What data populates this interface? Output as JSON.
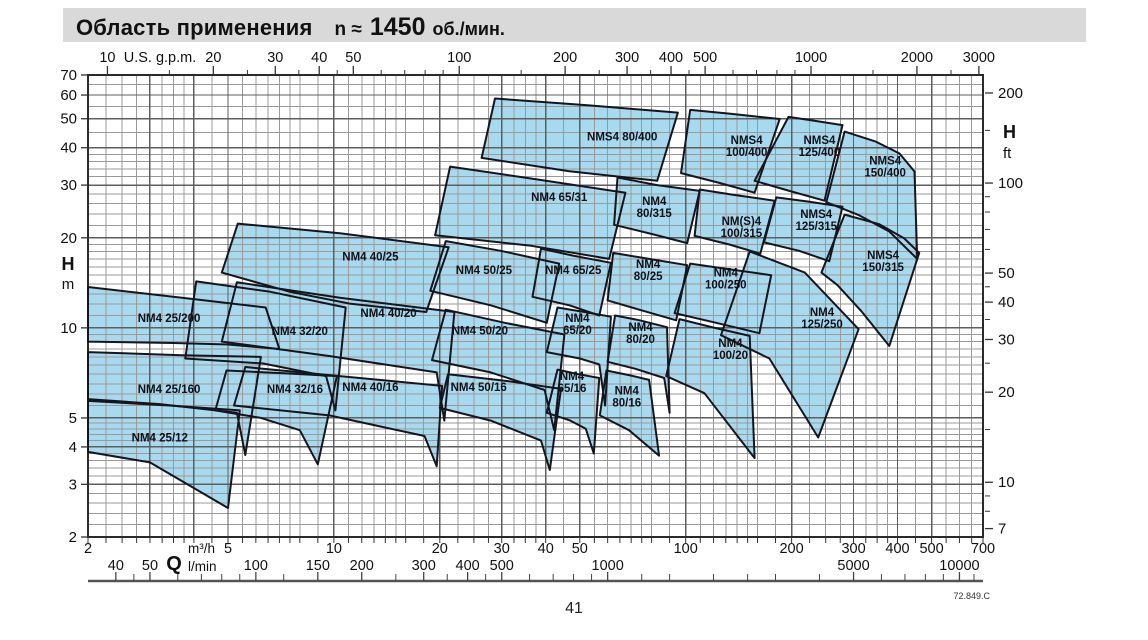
{
  "title": {
    "main": "Область применения",
    "n": "n ≈",
    "value": "1450",
    "units": "об./мин."
  },
  "page_number": "41",
  "doc_code": "72.849.C",
  "colors": {
    "region_fill": "#a8daef",
    "region_stroke": "#15151e",
    "grid_minor": "#9a9a9a",
    "grid_major": "#5e5e5e",
    "plot_border": "#2a2a2a",
    "title_bg": "#d9d9d9",
    "label_text": "#101018"
  },
  "chart_data": {
    "type": "area",
    "title": "Область применения n ≈ 1450 об./мин.",
    "x_axis": {
      "symbol": "Q",
      "unit_primary": "m³/h",
      "unit_secondary": "l/min",
      "scale": "log",
      "range_m3h": [
        2,
        700
      ],
      "m3h_ticks": [
        2,
        5,
        10,
        20,
        30,
        40,
        50,
        100,
        200,
        300,
        400,
        500,
        700
      ],
      "lmin_ticks": [
        40,
        50,
        100,
        150,
        200,
        300,
        400,
        500,
        1000,
        5000,
        10000
      ],
      "lmin_per_m3h": 16.667
    },
    "top_axis": {
      "label": "U.S. g.p.m.",
      "ticks": [
        10,
        20,
        30,
        40,
        50,
        100,
        200,
        300,
        400,
        500,
        1000,
        2000,
        3000
      ],
      "gpm_per_m3h": 4.4029
    },
    "y_axis": {
      "symbol": "H",
      "unit": "m",
      "scale": "log",
      "range_m": [
        2,
        70
      ],
      "ticks": [
        2,
        3,
        4,
        5,
        10,
        20,
        30,
        40,
        50,
        60,
        70
      ]
    },
    "right_axis": {
      "symbol": "H",
      "unit": "ft",
      "ticks": [
        7,
        10,
        20,
        30,
        40,
        50,
        100,
        200
      ],
      "ft_per_m": 3.2808
    },
    "regions": [
      {
        "name": "NM4 25/200",
        "lines": [
          "NM4 25/200"
        ],
        "at": [
          3.4,
          10.8
        ],
        "pts": [
          [
            2,
            13.7
          ],
          [
            3.7,
            12.6
          ],
          [
            6.4,
            11.7
          ],
          [
            7.0,
            8.5
          ],
          [
            5.0,
            8.8
          ],
          [
            3.5,
            8.9
          ],
          [
            2,
            9.0
          ]
        ]
      },
      {
        "name": "NM4 25/160",
        "lines": [
          "NM4 25/160"
        ],
        "at": [
          3.4,
          6.25
        ],
        "pts": [
          [
            2,
            8.3
          ],
          [
            3.7,
            8.1
          ],
          [
            6.2,
            8.0
          ],
          [
            5.6,
            3.76
          ],
          [
            5.3,
            5.2
          ],
          [
            3.2,
            5.56
          ],
          [
            2,
            5.78
          ]
        ]
      },
      {
        "name": "NM4 25/12",
        "lines": [
          "NM4 25/12"
        ],
        "at": [
          3.2,
          4.3
        ],
        "pts": [
          [
            2,
            5.7
          ],
          [
            3.4,
            5.5
          ],
          [
            5.4,
            5.3
          ],
          [
            5.0,
            2.5
          ],
          [
            3.0,
            3.55
          ],
          [
            2,
            3.85
          ]
        ]
      },
      {
        "name": "NM4 32/20",
        "lines": [
          "NM4 32/20"
        ],
        "at": [
          8.0,
          9.75
        ],
        "pts": [
          [
            4.06,
            14.3
          ],
          [
            6.6,
            13.2
          ],
          [
            10.8,
            11.7
          ],
          [
            10.1,
            5.3
          ],
          [
            9.5,
            6.9
          ],
          [
            6.3,
            7.6
          ],
          [
            3.78,
            7.9
          ]
        ]
      },
      {
        "name": "NM4 32/16",
        "lines": [
          "NM4 32/16"
        ],
        "at": [
          7.75,
          6.25
        ],
        "pts": [
          [
            4.95,
            7.2
          ],
          [
            7.2,
            7.05
          ],
          [
            10.2,
            6.9
          ],
          [
            9.0,
            3.5
          ],
          [
            8.0,
            4.55
          ],
          [
            6.2,
            5.0
          ],
          [
            4.6,
            5.3
          ]
        ]
      },
      {
        "name": "NM4 40/25",
        "lines": [
          "NM4 40/25"
        ],
        "at": [
          12.7,
          17.3
        ],
        "pts": [
          [
            5.33,
            22.3
          ],
          [
            10.4,
            20.7
          ],
          [
            21.2,
            18.6
          ],
          [
            18.3,
            11.3
          ],
          [
            11.1,
            12.05
          ],
          [
            7.5,
            13.2
          ],
          [
            4.8,
            15.3
          ]
        ]
      },
      {
        "name": "NM4 40/20",
        "lines": [
          "NM4 40/20"
        ],
        "at": [
          14.3,
          11.2
        ],
        "pts": [
          [
            5.3,
            14.2
          ],
          [
            10.4,
            12.6
          ],
          [
            22,
            11.3
          ],
          [
            20.6,
            4.9
          ],
          [
            19.6,
            7.1
          ],
          [
            9.7,
            8.05
          ],
          [
            4.8,
            9.0
          ]
        ]
      },
      {
        "name": "NM4 40/16",
        "lines": [
          "NM4 40/16"
        ],
        "at": [
          12.7,
          6.35
        ],
        "pts": [
          [
            5.6,
            7.4
          ],
          [
            10.4,
            6.9
          ],
          [
            20.3,
            6.4
          ],
          [
            19.6,
            3.45
          ],
          [
            18.1,
            4.35
          ],
          [
            9.7,
            5.1
          ],
          [
            5.2,
            5.5
          ]
        ]
      },
      {
        "name": "NM4 50/25",
        "lines": [
          "NM4 50/25"
        ],
        "at": [
          26.7,
          15.6
        ],
        "pts": [
          [
            20.8,
            19.5
          ],
          [
            29.8,
            18.1
          ],
          [
            43.7,
            16.4
          ],
          [
            40.3,
            10.4
          ],
          [
            27.9,
            11.9
          ],
          [
            18.8,
            13.3
          ]
        ]
      },
      {
        "name": "NM4 50/20",
        "lines": [
          "NM4 50/20"
        ],
        "at": [
          26.0,
          9.8
        ],
        "pts": [
          [
            20.8,
            11.5
          ],
          [
            30.6,
            10.4
          ],
          [
            45.2,
            9.5
          ],
          [
            42.3,
            4.55
          ],
          [
            39.7,
            6.2
          ],
          [
            27.9,
            7.1
          ],
          [
            19.0,
            7.8
          ]
        ]
      },
      {
        "name": "NM4 50/16",
        "lines": [
          "NM4 50/16"
        ],
        "at": [
          25.8,
          6.35
        ],
        "pts": [
          [
            21.1,
            7.0
          ],
          [
            30.6,
            6.66
          ],
          [
            44.2,
            6.25
          ],
          [
            41.1,
            3.35
          ],
          [
            38.8,
            4.2
          ],
          [
            27.9,
            4.9
          ],
          [
            20,
            5.4
          ]
        ]
      },
      {
        "name": "NM4 65/31",
        "lines": [
          "NM4 65/31"
        ],
        "at": [
          43.7,
          27.4
        ],
        "pts": [
          [
            21.4,
            34.6
          ],
          [
            38.8,
            31.2
          ],
          [
            67.4,
            28.3
          ],
          [
            60.6,
            17.0
          ],
          [
            36.4,
            18.8
          ],
          [
            19.4,
            20.4
          ]
        ]
      },
      {
        "name": "NM4 65/25",
        "lines": [
          "NM4 65/25"
        ],
        "at": [
          47.9,
          15.6
        ],
        "pts": [
          [
            38.8,
            18.4
          ],
          [
            48.2,
            17.4
          ],
          [
            61.3,
            16.5
          ],
          [
            56.8,
            11.0
          ],
          [
            46.7,
            11.9
          ],
          [
            36.7,
            12.7
          ]
        ]
      },
      {
        "name": "NM4 65/20",
        "lines": [
          "NM4",
          "65/20"
        ],
        "at": [
          49.2,
          10.3
        ],
        "pts": [
          [
            43.2,
            11.7
          ],
          [
            51.5,
            11.3
          ],
          [
            61.3,
            10.9
          ],
          [
            59,
            5.5
          ],
          [
            56.8,
            7.55
          ],
          [
            50,
            7.9
          ],
          [
            40.3,
            8.3
          ]
        ]
      },
      {
        "name": "NM4 65/16",
        "lines": [
          "NM4",
          "65/16"
        ],
        "at": [
          47.5,
          6.6
        ],
        "pts": [
          [
            43.2,
            7.25
          ],
          [
            49.5,
            7.0
          ],
          [
            56.8,
            6.8
          ],
          [
            54.8,
            3.8
          ],
          [
            52,
            4.6
          ],
          [
            47,
            4.9
          ],
          [
            40.3,
            5.2
          ]
        ]
      },
      {
        "name": "NM4 80/315",
        "lines": [
          "NM4",
          "80/315"
        ],
        "at": [
          81.4,
          25.3
        ],
        "pts": [
          [
            64,
            31.8
          ],
          [
            83,
            30.0
          ],
          [
            109.6,
            28.7
          ],
          [
            101,
            19.2
          ],
          [
            81.4,
            20.5
          ],
          [
            62.6,
            22.1
          ]
        ]
      },
      {
        "name": "NM4 80/25",
        "lines": [
          "NM4",
          "80/25"
        ],
        "at": [
          78.2,
          15.6
        ],
        "pts": [
          [
            62.2,
            17.8
          ],
          [
            78.7,
            17.0
          ],
          [
            101,
            16.2
          ],
          [
            94,
            10.6
          ],
          [
            75.7,
            11.4
          ],
          [
            60,
            12.35
          ]
        ]
      },
      {
        "name": "NM4 80/20",
        "lines": [
          "NM4",
          "80/20"
        ],
        "at": [
          74.4,
          9.6
        ],
        "pts": [
          [
            63,
            11.0
          ],
          [
            74,
            10.6
          ],
          [
            88.5,
            10.05
          ],
          [
            90,
            5.2
          ],
          [
            86.9,
            6.8
          ],
          [
            72,
            7.3
          ],
          [
            60,
            7.7
          ]
        ]
      },
      {
        "name": "NM4 80/16",
        "lines": [
          "NM4",
          "80/16"
        ],
        "at": [
          68,
          5.9
        ],
        "pts": [
          [
            59.5,
            7.2
          ],
          [
            69,
            6.95
          ],
          [
            78.7,
            6.7
          ],
          [
            84,
            3.74
          ],
          [
            69,
            4.55
          ],
          [
            57,
            5.1
          ]
        ]
      },
      {
        "name": "NM(S)4 100/315",
        "lines": [
          "NM(S)4",
          "100/315"
        ],
        "at": [
          144,
          21.7
        ],
        "pts": [
          [
            109.6,
            29.0
          ],
          [
            137.7,
            27.8
          ],
          [
            178.9,
            26.6
          ],
          [
            163,
            17.7
          ],
          [
            133,
            19.0
          ],
          [
            106,
            20.3
          ]
        ]
      },
      {
        "name": "NM4 100/250",
        "lines": [
          "NM4",
          "100/250"
        ],
        "at": [
          130,
          14.6
        ],
        "pts": [
          [
            103,
            16.4
          ],
          [
            133,
            15.7
          ],
          [
            175,
            15.0
          ],
          [
            162,
            9.6
          ],
          [
            122,
            10.4
          ],
          [
            93,
            11.2
          ]
        ]
      },
      {
        "name": "NM4 100/20",
        "lines": [
          "NM4",
          "100/20"
        ],
        "at": [
          134,
          8.5
        ],
        "pts": [
          [
            96,
            10.7
          ],
          [
            121,
            10.0
          ],
          [
            152,
            9.4
          ],
          [
            157,
            3.67
          ],
          [
            113,
            6.05
          ],
          [
            88,
            6.9
          ]
        ]
      },
      {
        "name": "NMS4 125/315",
        "lines": [
          "NMS4",
          "125/315"
        ],
        "at": [
          235,
          22.9
        ],
        "pts": [
          [
            181,
            27.3
          ],
          [
            224.8,
            26.4
          ],
          [
            279,
            25.4
          ],
          [
            256,
            16.7
          ],
          [
            210,
            18.1
          ],
          [
            167,
            19.3
          ]
        ]
      },
      {
        "name": "NM4 125/250",
        "lines": [
          "NM4",
          "125/250"
        ],
        "at": [
          244,
          10.8
        ],
        "pts": [
          [
            152,
            18.0
          ],
          [
            218,
            15.3
          ],
          [
            310,
            9.9
          ],
          [
            238,
            4.3
          ],
          [
            173,
            7.9
          ],
          [
            126,
            9.45
          ]
        ]
      },
      {
        "name": "NMS4 150/315",
        "lines": [
          "NMS4",
          "150/315"
        ],
        "at": [
          364,
          16.7
        ],
        "pts": [
          [
            283,
            23.9
          ],
          [
            355,
            22.2
          ],
          [
            418,
            19.9
          ],
          [
            461,
            17.8
          ],
          [
            379,
            8.7
          ],
          [
            315,
            11.4
          ],
          [
            270,
            13.9
          ],
          [
            243,
            15.3
          ]
        ]
      },
      {
        "name": "NMS4 80/400",
        "lines": [
          "NMS4 80/400"
        ],
        "at": [
          66,
          43.6
        ],
        "pts": [
          [
            28.7,
            58.4
          ],
          [
            53.2,
            55.4
          ],
          [
            95,
            52.4
          ],
          [
            83,
            31.0
          ],
          [
            46.7,
            33.4
          ],
          [
            26.3,
            37.0
          ]
        ]
      },
      {
        "name": "NMS4 100/400",
        "lines": [
          "NMS4",
          "100/400"
        ],
        "at": [
          149,
          40.6
        ],
        "pts": [
          [
            103,
            53.5
          ],
          [
            133,
            52.0
          ],
          [
            185,
            49.9
          ],
          [
            157,
            28.3
          ],
          [
            125,
            30.5
          ],
          [
            97,
            32.9
          ]
        ]
      },
      {
        "name": "NMS4 125/400",
        "lines": [
          "NMS4",
          "125/400"
        ],
        "at": [
          240,
          40.6
        ],
        "pts": [
          [
            196,
            50.7
          ],
          [
            232,
            49.2
          ],
          [
            279,
            47.6
          ],
          [
            248,
            26.6
          ],
          [
            197,
            28.7
          ],
          [
            157,
            31.0
          ]
        ]
      },
      {
        "name": "NMS4 150/400",
        "lines": [
          "NMS4",
          "150/400"
        ],
        "at": [
          369,
          34.6
        ],
        "pts": [
          [
            283,
            45.3
          ],
          [
            346,
            42.0
          ],
          [
            405,
            38.3
          ],
          [
            447,
            33.3
          ],
          [
            455,
            17.0
          ],
          [
            379,
            21.0
          ],
          [
            311,
            23.8
          ],
          [
            251,
            26.3
          ]
        ]
      }
    ]
  }
}
